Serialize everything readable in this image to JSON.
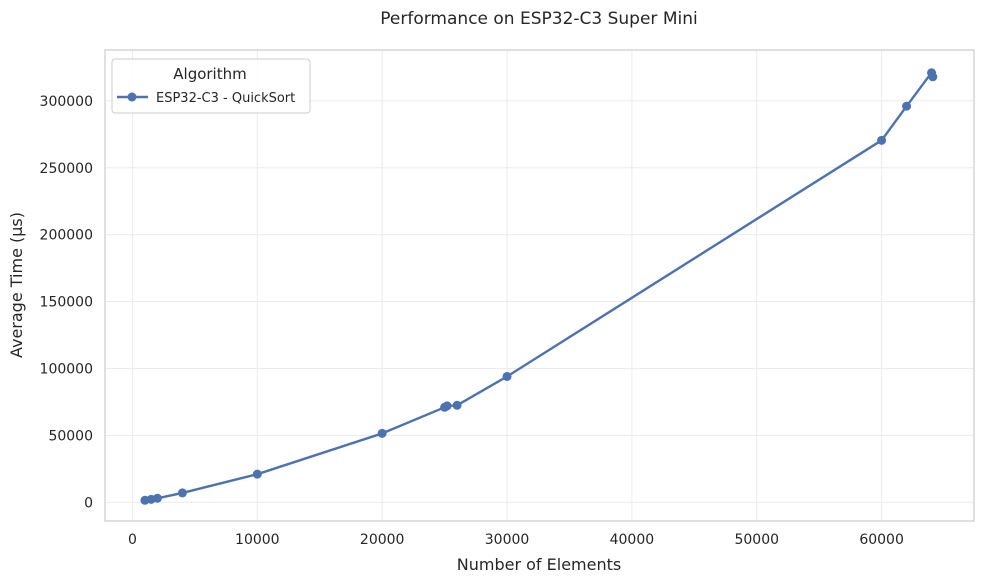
{
  "chart_data": {
    "type": "line",
    "title": "Performance on ESP32-C3 Super Mini",
    "xlabel": "Number of Elements",
    "ylabel": "Average Time (µs)",
    "xlim": [
      -2200,
      67400
    ],
    "ylim": [
      -14000,
      338000
    ],
    "xticks": [
      0,
      10000,
      20000,
      30000,
      40000,
      50000,
      60000
    ],
    "yticks": [
      0,
      50000,
      100000,
      150000,
      200000,
      250000,
      300000
    ],
    "grid": true,
    "legend": {
      "title": "Algorithm",
      "position": "top-left"
    },
    "series": [
      {
        "name": "ESP32-C3 - QuickSort",
        "color": "#4c72b0",
        "x": [
          1000,
          1500,
          2000,
          4000,
          10000,
          20000,
          25000,
          25200,
          26000,
          30000,
          60000,
          62000,
          64000,
          64100
        ],
        "y": [
          1500,
          2200,
          3000,
          7000,
          21000,
          51500,
          71000,
          72000,
          72500,
          94000,
          270500,
          296000,
          321000,
          318000
        ]
      }
    ]
  }
}
